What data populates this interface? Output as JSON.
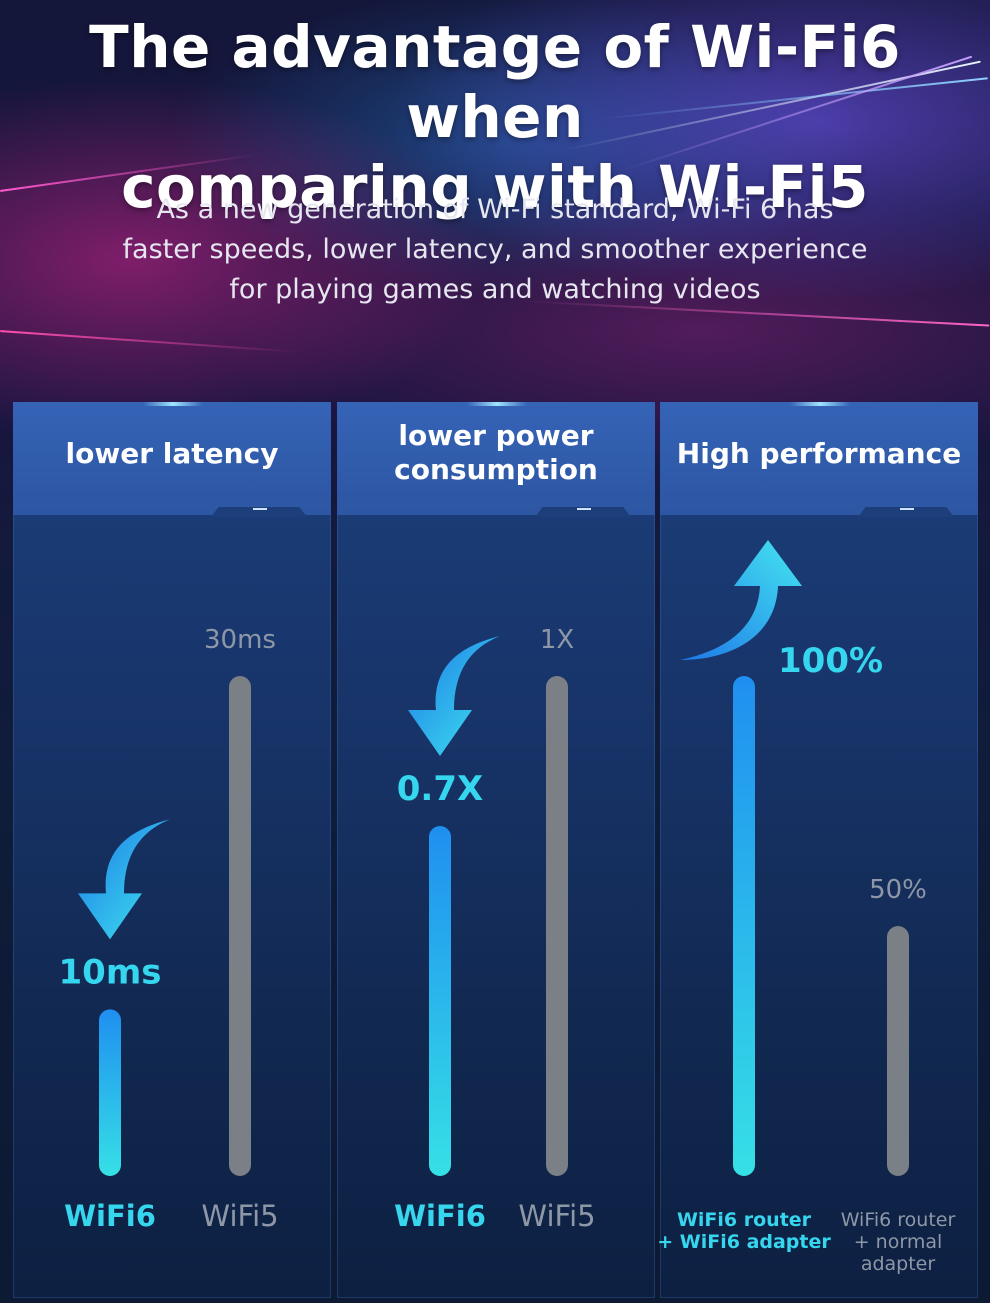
{
  "header": {
    "title_line1": "The advantage of Wi-Fi6 when",
    "title_line2": "comparing with Wi-Fi5",
    "subtitle_line1": "As a new generation of Wi-Fi standard, Wi-Fi 6 has",
    "subtitle_line2": "faster speeds, lower latency, and smoother experience",
    "subtitle_line3": "for playing games and watching videos"
  },
  "colors": {
    "wifi6": "#2fb6f2",
    "wifi5": "#7b7f86",
    "label6": "#35d6ee",
    "label5": "#8e97a6"
  },
  "chart_data": [
    {
      "type": "bar",
      "title": "lower latency",
      "categories": [
        "WiFi6",
        "WiFi5"
      ],
      "values": [
        10,
        30
      ],
      "value_labels": [
        "10ms",
        "30ms"
      ],
      "ylim": [
        0,
        30
      ],
      "arrow": "down"
    },
    {
      "type": "bar",
      "title": "lower power consumption",
      "title_lines": [
        "lower power",
        "consumption"
      ],
      "categories": [
        "WiFi6",
        "WiFi5"
      ],
      "values": [
        0.7,
        1
      ],
      "value_labels": [
        "0.7X",
        "1X"
      ],
      "ylim": [
        0,
        1
      ],
      "arrow": "down"
    },
    {
      "type": "bar",
      "title": "High performance",
      "categories": [
        "WiFi6 router + WiFi6 adapter",
        "WiFi6 router + normal adapter"
      ],
      "category_lines": [
        [
          "WiFi6 router",
          "+ WiFi6 adapter"
        ],
        [
          "WiFi6 router",
          "+ normal",
          "adapter"
        ]
      ],
      "values": [
        100,
        50
      ],
      "value_labels": [
        "100%",
        "50%"
      ],
      "ylim": [
        0,
        100
      ],
      "arrow": "up"
    }
  ]
}
